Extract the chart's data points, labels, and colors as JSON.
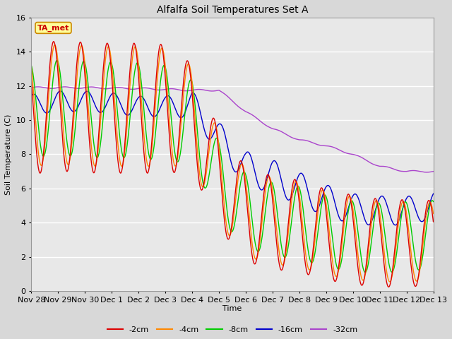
{
  "title": "Alfalfa Soil Temperatures Set A",
  "ylabel": "Soil Temperature (C)",
  "xlabel": "Time",
  "ylim": [
    0,
    16
  ],
  "fig_bg": "#d8d8d8",
  "plot_bg": "#e8e8e8",
  "grid_color": "#ffffff",
  "series_colors": {
    "-2cm": "#dd0000",
    "-4cm": "#ff8800",
    "-8cm": "#00cc00",
    "-16cm": "#0000cc",
    "-32cm": "#aa44cc"
  },
  "ta_met_label": "TA_met",
  "ta_met_color": "#cc0000",
  "ta_met_bg": "#ffff99",
  "ta_met_border": "#cc8800",
  "tick_labels": [
    "Nov 28",
    "Nov 29",
    "Nov 30",
    "Dec 1",
    "Dec 2",
    "Dec 3",
    "Dec 4",
    "Dec 5",
    "Dec 6",
    "Dec 7",
    "Dec 8",
    "Dec 9",
    "Dec 10",
    "Dec 11",
    "Dec 12",
    "Dec 13"
  ],
  "tick_hours": [
    0,
    24,
    48,
    72,
    96,
    120,
    144,
    168,
    192,
    216,
    240,
    264,
    288,
    312,
    336,
    360
  ]
}
